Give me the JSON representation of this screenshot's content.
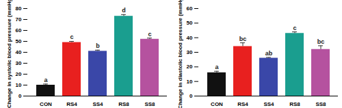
{
  "chart_data": [
    {
      "type": "bar",
      "y_label": "Change in systolic blood pressure (mmHg)",
      "categories": [
        "CON",
        "RS4",
        "SS4",
        "RS8",
        "SS8"
      ],
      "values": [
        10,
        49,
        41,
        73,
        52
      ],
      "errors": [
        1,
        1,
        1,
        1.5,
        1
      ],
      "letters": [
        "a",
        "c",
        "b",
        "d",
        "c"
      ],
      "colors": [
        "#111111",
        "#e8201f",
        "#3a47a8",
        "#1a9e8f",
        "#b5529f"
      ],
      "ylim": [
        0,
        80
      ],
      "yticks": [
        0,
        10,
        20,
        30,
        40,
        50,
        60,
        70,
        80
      ]
    },
    {
      "type": "bar",
      "y_label": "Change in diastolic blood pressure (mmHg)",
      "categories": [
        "CON",
        "RS4",
        "SS4",
        "RS8",
        "SS8"
      ],
      "values": [
        16,
        34,
        26,
        43,
        32
      ],
      "errors": [
        1,
        2.5,
        0.5,
        1,
        2.5
      ],
      "letters": [
        "a",
        "bc",
        "ab",
        "c",
        "bc"
      ],
      "colors": [
        "#111111",
        "#e8201f",
        "#3a47a8",
        "#1a9e8f",
        "#b5529f"
      ],
      "ylim": [
        0,
        60
      ],
      "yticks": [
        0,
        10,
        20,
        30,
        40,
        50,
        60
      ]
    }
  ]
}
